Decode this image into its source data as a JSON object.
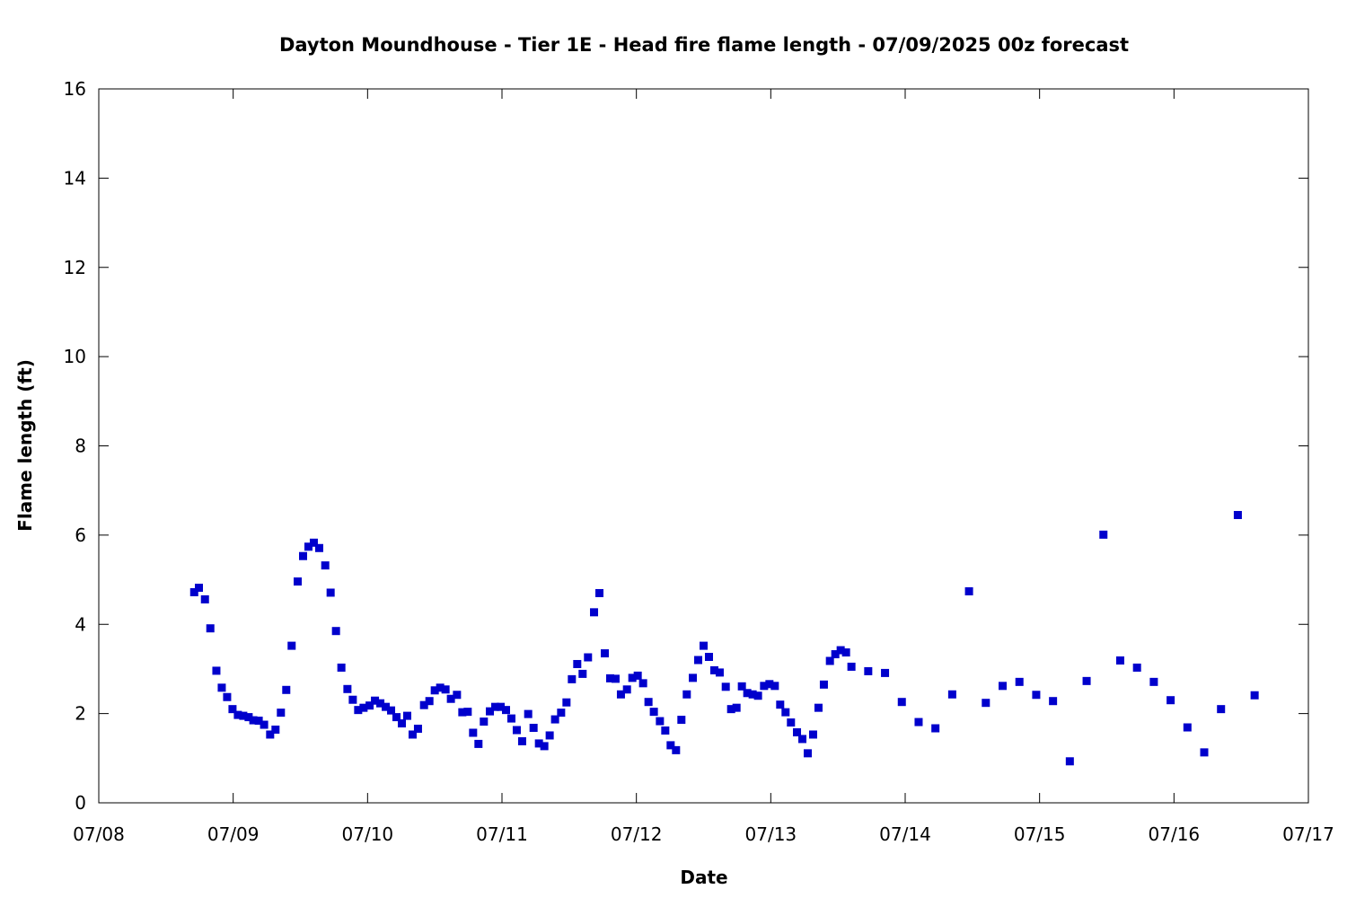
{
  "chart_data": {
    "type": "scatter",
    "title": "Dayton Moundhouse - Tier 1E - Head fire flame length - 07/09/2025 00z forecast",
    "xlabel": "Date",
    "ylabel": "Flame length (ft)",
    "x_unit": "days since 07/08 00:00 (date axis)",
    "xlim": [
      0,
      9
    ],
    "ylim": [
      0,
      16
    ],
    "x_ticks": [
      0,
      1,
      2,
      3,
      4,
      5,
      6,
      7,
      8,
      9
    ],
    "x_tick_labels": [
      "07/08",
      "07/09",
      "07/10",
      "07/11",
      "07/12",
      "07/13",
      "07/14",
      "07/15",
      "07/16",
      "07/17"
    ],
    "y_ticks": [
      0,
      2,
      4,
      6,
      8,
      10,
      12,
      14,
      16
    ],
    "y_tick_labels": [
      "0",
      "2",
      "4",
      "6",
      "8",
      "10",
      "12",
      "14",
      "16"
    ],
    "grid": false,
    "legend": "none",
    "marker": "square",
    "marker_color": "#0000cc",
    "series": [
      {
        "points": [
          [
            0.71,
            4.72
          ],
          [
            0.745,
            4.82
          ],
          [
            0.79,
            4.56
          ],
          [
            0.83,
            3.91
          ],
          [
            0.875,
            2.96
          ],
          [
            0.915,
            2.58
          ],
          [
            0.955,
            2.37
          ],
          [
            0.995,
            2.1
          ],
          [
            1.035,
            1.97
          ],
          [
            1.075,
            1.95
          ],
          [
            1.115,
            1.92
          ],
          [
            1.15,
            1.85
          ],
          [
            1.19,
            1.84
          ],
          [
            1.23,
            1.75
          ],
          [
            1.275,
            1.53
          ],
          [
            1.315,
            1.64
          ],
          [
            1.355,
            2.02
          ],
          [
            1.395,
            2.53
          ],
          [
            1.435,
            3.52
          ],
          [
            1.48,
            4.96
          ],
          [
            1.52,
            5.53
          ],
          [
            1.56,
            5.74
          ],
          [
            1.6,
            5.83
          ],
          [
            1.64,
            5.71
          ],
          [
            1.685,
            5.32
          ],
          [
            1.725,
            4.71
          ],
          [
            1.765,
            3.85
          ],
          [
            1.805,
            3.03
          ],
          [
            1.85,
            2.55
          ],
          [
            1.89,
            2.31
          ],
          [
            1.93,
            2.08
          ],
          [
            1.97,
            2.13
          ],
          [
            2.015,
            2.18
          ],
          [
            2.055,
            2.29
          ],
          [
            2.095,
            2.23
          ],
          [
            2.135,
            2.15
          ],
          [
            2.175,
            2.07
          ],
          [
            2.215,
            1.92
          ],
          [
            2.255,
            1.78
          ],
          [
            2.295,
            1.95
          ],
          [
            2.335,
            1.53
          ],
          [
            2.375,
            1.66
          ],
          [
            2.42,
            2.19
          ],
          [
            2.46,
            2.28
          ],
          [
            2.5,
            2.52
          ],
          [
            2.54,
            2.58
          ],
          [
            2.58,
            2.54
          ],
          [
            2.62,
            2.33
          ],
          [
            2.665,
            2.42
          ],
          [
            2.705,
            2.03
          ],
          [
            2.745,
            2.04
          ],
          [
            2.785,
            1.57
          ],
          [
            2.825,
            1.32
          ],
          [
            2.865,
            1.82
          ],
          [
            2.91,
            2.05
          ],
          [
            2.95,
            2.15
          ],
          [
            2.99,
            2.15
          ],
          [
            3.03,
            2.08
          ],
          [
            3.07,
            1.89
          ],
          [
            3.11,
            1.63
          ],
          [
            3.15,
            1.38
          ],
          [
            3.195,
            1.99
          ],
          [
            3.235,
            1.68
          ],
          [
            3.275,
            1.33
          ],
          [
            3.315,
            1.27
          ],
          [
            3.355,
            1.51
          ],
          [
            3.395,
            1.87
          ],
          [
            3.44,
            2.02
          ],
          [
            3.48,
            2.25
          ],
          [
            3.52,
            2.77
          ],
          [
            3.56,
            3.11
          ],
          [
            3.6,
            2.89
          ],
          [
            3.64,
            3.26
          ],
          [
            3.685,
            4.27
          ],
          [
            3.725,
            4.7
          ],
          [
            3.765,
            3.35
          ],
          [
            3.805,
            2.79
          ],
          [
            3.845,
            2.78
          ],
          [
            3.885,
            2.43
          ],
          [
            3.93,
            2.54
          ],
          [
            3.97,
            2.8
          ],
          [
            4.01,
            2.85
          ],
          [
            4.05,
            2.68
          ],
          [
            4.09,
            2.26
          ],
          [
            4.13,
            2.04
          ],
          [
            4.175,
            1.83
          ],
          [
            4.215,
            1.62
          ],
          [
            4.255,
            1.29
          ],
          [
            4.295,
            1.18
          ],
          [
            4.335,
            1.86
          ],
          [
            4.375,
            2.43
          ],
          [
            4.42,
            2.8
          ],
          [
            4.46,
            3.2
          ],
          [
            4.5,
            3.52
          ],
          [
            4.54,
            3.27
          ],
          [
            4.58,
            2.97
          ],
          [
            4.62,
            2.92
          ],
          [
            4.665,
            2.6
          ],
          [
            4.705,
            2.1
          ],
          [
            4.745,
            2.13
          ],
          [
            4.785,
            2.61
          ],
          [
            4.825,
            2.46
          ],
          [
            4.865,
            2.43
          ],
          [
            4.905,
            2.4
          ],
          [
            4.95,
            2.62
          ],
          [
            4.99,
            2.66
          ],
          [
            5.03,
            2.62
          ],
          [
            5.07,
            2.2
          ],
          [
            5.11,
            2.03
          ],
          [
            5.15,
            1.8
          ],
          [
            5.195,
            1.58
          ],
          [
            5.235,
            1.43
          ],
          [
            5.275,
            1.11
          ],
          [
            5.315,
            1.53
          ],
          [
            5.355,
            2.13
          ],
          [
            5.395,
            2.65
          ],
          [
            5.44,
            3.18
          ],
          [
            5.48,
            3.33
          ],
          [
            5.52,
            3.42
          ],
          [
            5.56,
            3.37
          ],
          [
            5.6,
            3.05
          ],
          [
            5.725,
            2.95
          ],
          [
            5.85,
            2.91
          ],
          [
            5.975,
            2.26
          ],
          [
            6.1,
            1.81
          ],
          [
            6.225,
            1.67
          ],
          [
            6.35,
            2.43
          ],
          [
            6.475,
            4.74
          ],
          [
            6.6,
            2.24
          ],
          [
            6.725,
            2.62
          ],
          [
            6.85,
            2.71
          ],
          [
            6.975,
            2.42
          ],
          [
            7.1,
            2.28
          ],
          [
            7.225,
            0.93
          ],
          [
            7.35,
            2.73
          ],
          [
            7.475,
            6.01
          ],
          [
            7.6,
            3.19
          ],
          [
            7.725,
            3.03
          ],
          [
            7.85,
            2.71
          ],
          [
            7.975,
            2.3
          ],
          [
            8.1,
            1.69
          ],
          [
            8.225,
            1.13
          ],
          [
            8.35,
            2.1
          ],
          [
            8.475,
            6.45
          ],
          [
            8.6,
            2.41
          ]
        ]
      }
    ]
  }
}
